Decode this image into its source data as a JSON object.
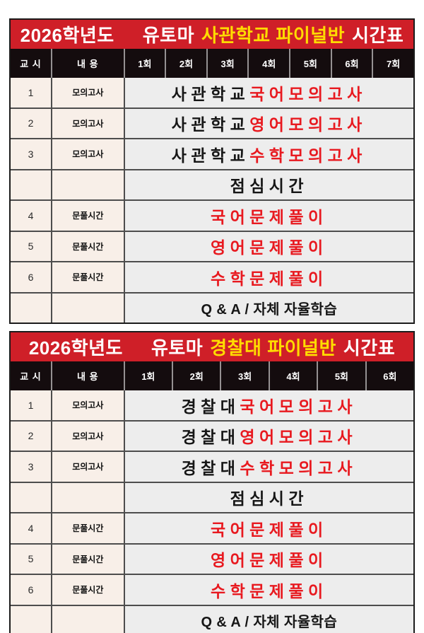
{
  "colors": {
    "header_red": "#cf1f28",
    "highlight_yellow": "#ffdc00",
    "header_black": "#140c0e",
    "cell_cream": "#f8efe8",
    "cell_gray": "#ededed",
    "text_red": "#e8191f",
    "grid_line": "#4d4d4d",
    "outer_border": "#1c1c1c"
  },
  "tables": [
    {
      "title": {
        "year": "2026학년도",
        "brand": "유토마",
        "program": "사관학교 파이널반",
        "suffix": "시간표"
      },
      "columns": {
        "period": "교 시",
        "content": "내 용"
      },
      "sessions": [
        "1회",
        "2회",
        "3회",
        "4회",
        "5회",
        "6회",
        "7회"
      ],
      "rows": [
        {
          "period": "1",
          "category": "모의고사",
          "text_black": "사관학교",
          "text_red": "국어모의고사"
        },
        {
          "period": "2",
          "category": "모의고사",
          "text_black": "사관학교",
          "text_red": "영어모의고사"
        },
        {
          "period": "3",
          "category": "모의고사",
          "text_black": "사관학교",
          "text_red": "수학모의고사"
        },
        {
          "period": "",
          "category": "",
          "text_black": "점심시간",
          "text_red": ""
        },
        {
          "period": "4",
          "category": "문풀시간",
          "text_black": "",
          "text_red": "국어문제풀이"
        },
        {
          "period": "5",
          "category": "문풀시간",
          "text_black": "",
          "text_red": "영어문제풀이"
        },
        {
          "period": "6",
          "category": "문풀시간",
          "text_black": "",
          "text_red": "수학문제풀이"
        },
        {
          "period": "",
          "category": "",
          "text_black": "Q & A / 자체 자율학습",
          "text_red": ""
        }
      ]
    },
    {
      "title": {
        "year": "2026학년도",
        "brand": "유토마",
        "program": "경찰대 파이널반",
        "suffix": "시간표"
      },
      "columns": {
        "period": "교 시",
        "content": "내 용"
      },
      "sessions": [
        "1회",
        "2회",
        "3회",
        "4회",
        "5회",
        "6회"
      ],
      "rows": [
        {
          "period": "1",
          "category": "모의고사",
          "text_black": "경찰대",
          "text_red": "국어모의고사"
        },
        {
          "period": "2",
          "category": "모의고사",
          "text_black": "경찰대",
          "text_red": "영어모의고사"
        },
        {
          "period": "3",
          "category": "모의고사",
          "text_black": "경찰대",
          "text_red": "수학모의고사"
        },
        {
          "period": "",
          "category": "",
          "text_black": "점심시간",
          "text_red": ""
        },
        {
          "period": "4",
          "category": "문풀시간",
          "text_black": "",
          "text_red": "국어문제풀이"
        },
        {
          "period": "5",
          "category": "문풀시간",
          "text_black": "",
          "text_red": "영어문제풀이"
        },
        {
          "period": "6",
          "category": "문풀시간",
          "text_black": "",
          "text_red": "수학문제풀이"
        },
        {
          "period": "",
          "category": "",
          "text_black": "Q & A / 자체 자율학습",
          "text_red": ""
        }
      ]
    }
  ]
}
